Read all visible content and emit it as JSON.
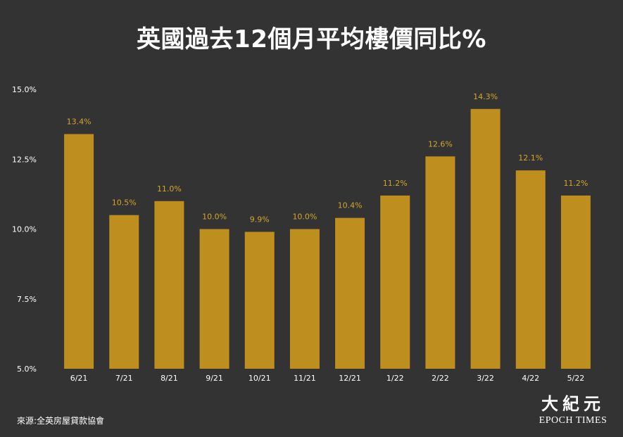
{
  "title": "英國過去12個月平均樓價同比%",
  "source": "來源:全英房屋貸款協會",
  "logo": {
    "cjk": "大紀元",
    "en": "EPOCH TIMES"
  },
  "colors": {
    "background": "#333333",
    "bar": "#BE8E1E",
    "value_label": "#D4A62A",
    "text": "#ffffff"
  },
  "chart_data": {
    "type": "bar",
    "categories": [
      "6/21",
      "7/21",
      "8/21",
      "9/21",
      "10/21",
      "11/21",
      "12/21",
      "1/22",
      "2/22",
      "3/22",
      "4/22",
      "5/22"
    ],
    "values": [
      13.4,
      10.5,
      11.0,
      10.0,
      9.9,
      10.0,
      10.4,
      11.2,
      12.6,
      14.3,
      12.1,
      11.2
    ],
    "value_labels": [
      "13.4%",
      "10.5%",
      "11.0%",
      "10.0%",
      "9.9%",
      "10.0%",
      "10.4%",
      "11.2%",
      "12.6%",
      "14.3%",
      "12.1%",
      "11.2%"
    ],
    "title": "英國過去12個月平均樓價同比%",
    "xlabel": "",
    "ylabel": "",
    "ylim": [
      5.0,
      15.0
    ],
    "yticks": [
      5.0,
      7.5,
      10.0,
      12.5,
      15.0
    ],
    "ytick_labels": [
      "5.0%",
      "7.5%",
      "10.0%",
      "12.5%",
      "15.0%"
    ],
    "grid": false,
    "legend": "none"
  }
}
